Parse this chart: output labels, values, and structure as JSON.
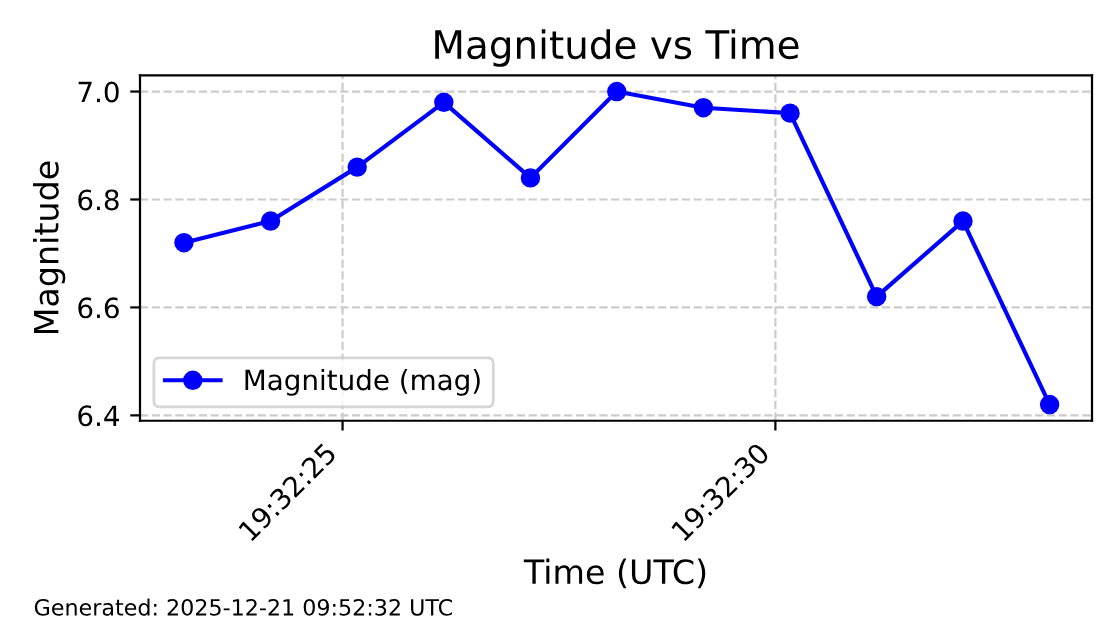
{
  "chart_data": {
    "type": "line",
    "title": "Magnitude vs Time",
    "xlabel": "Time (UTC)",
    "ylabel": "Magnitude",
    "x": [
      19.539769,
      19.540047,
      19.540325,
      19.540603,
      19.540881,
      19.541158,
      19.541436,
      19.541714,
      19.541992,
      19.542269,
      19.542547
    ],
    "series": [
      {
        "name": "Magnitude (mag)",
        "color": "#0000ff",
        "values": [
          6.72,
          6.76,
          6.86,
          6.98,
          6.84,
          7.0,
          6.97,
          6.96,
          6.62,
          6.76,
          6.42
        ]
      }
    ],
    "xlim": [
      19.539628,
      19.542683
    ],
    "xticks": [
      {
        "value": 19.540278,
        "label": "19:32:25"
      },
      {
        "value": 19.541667,
        "label": "19:32:30"
      }
    ],
    "ylim": [
      6.39,
      7.03
    ],
    "yticks": [
      {
        "value": 6.4,
        "label": "6.4"
      },
      {
        "value": 6.6,
        "label": "6.6"
      },
      {
        "value": 6.8,
        "label": "6.8"
      },
      {
        "value": 7.0,
        "label": "7.0"
      }
    ],
    "grid": true,
    "legend": "lower left",
    "marker": "circle",
    "line_style": "solid",
    "annotations": [
      "Generated: 2025-12-21 09:52:32 UTC"
    ]
  }
}
